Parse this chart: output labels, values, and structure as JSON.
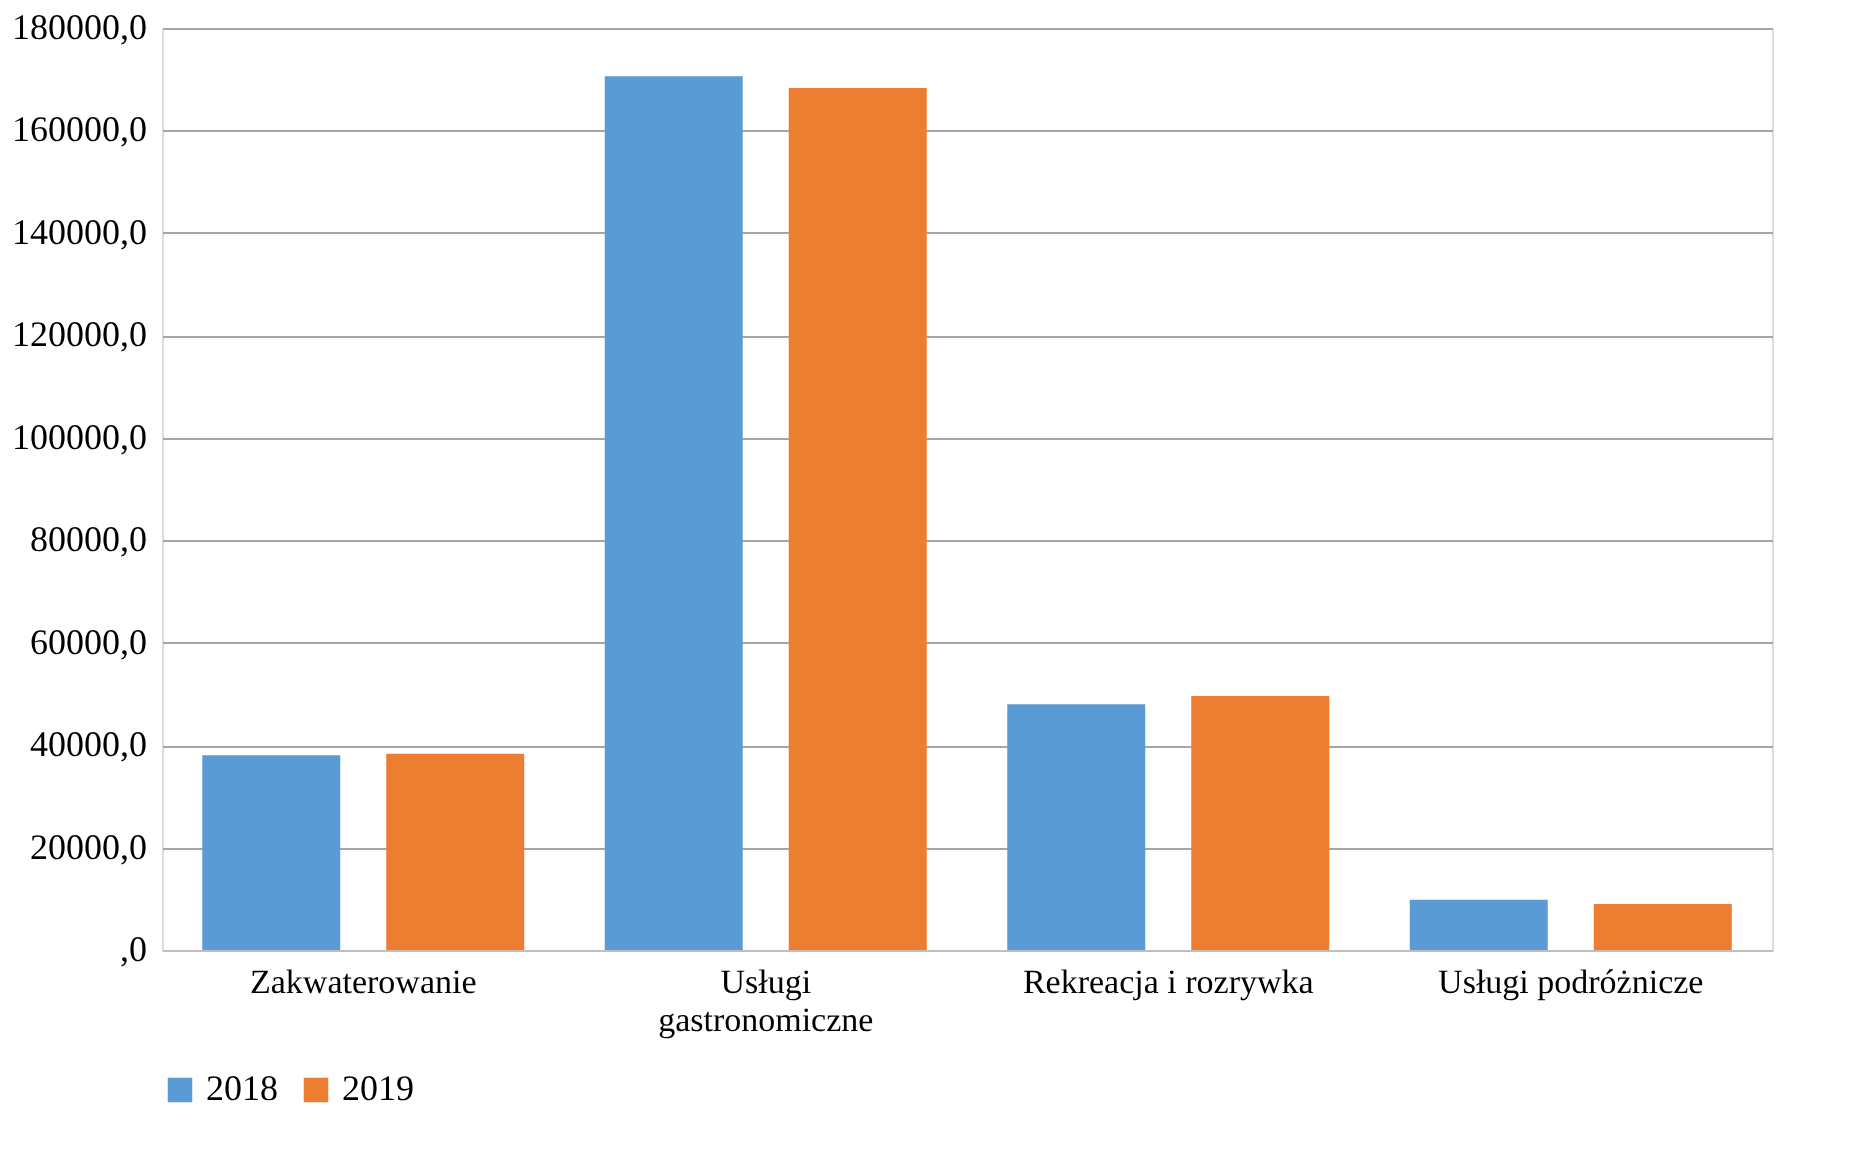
{
  "chart_data": {
    "type": "bar",
    "categories": [
      "Zakwaterowanie",
      "Usługi gastronomiczne",
      "Rekreacja i rozrywka",
      "Usługi podróżnicze"
    ],
    "series": [
      {
        "name": "2018",
        "color": "#5b9bd5",
        "values": [
          38000,
          170600,
          48000,
          9800
        ]
      },
      {
        "name": "2019",
        "color": "#ed7d31",
        "values": [
          38300,
          168300,
          49600,
          9000
        ]
      }
    ],
    "ylim": [
      0,
      180000
    ],
    "yticks": [
      {
        "value": 0,
        "label": ",0"
      },
      {
        "value": 20000,
        "label": "20000,0"
      },
      {
        "value": 40000,
        "label": "40000,0"
      },
      {
        "value": 60000,
        "label": "60000,0"
      },
      {
        "value": 80000,
        "label": "80000,0"
      },
      {
        "value": 100000,
        "label": "100000,0"
      },
      {
        "value": 120000,
        "label": "120000,0"
      },
      {
        "value": 140000,
        "label": "140000,0"
      },
      {
        "value": 160000,
        "label": "160000,0"
      },
      {
        "value": 180000,
        "label": "180000,0"
      }
    ],
    "grid": "y",
    "legend": "bottom"
  }
}
